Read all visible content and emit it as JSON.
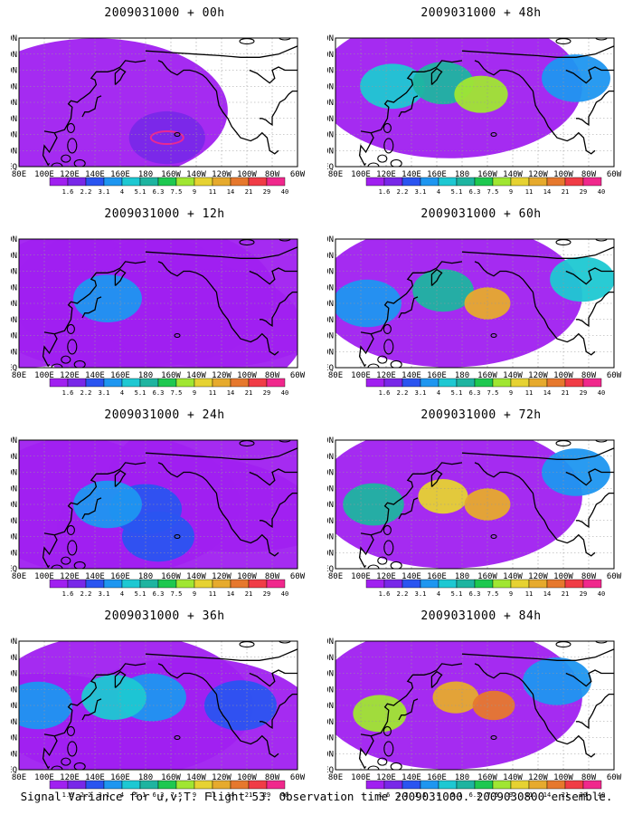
{
  "figure": {
    "footer": "Signal Variance for u,v,T. Flight 53. Observation time 2009031000. 2009030800 ensemble."
  },
  "colorbar": {
    "levels": [
      "1.6",
      "2.2",
      "3.1",
      "4",
      "5.1",
      "6.3",
      "7.5",
      "9",
      "11",
      "14",
      "21",
      "29",
      "40"
    ],
    "colors": [
      "#a020f0",
      "#7828e8",
      "#2a54f0",
      "#1e96f0",
      "#1ec8d2",
      "#1eb4a0",
      "#1ec850",
      "#a0e632",
      "#e6d232",
      "#e6aa2d",
      "#e6782d",
      "#f03c46",
      "#f0288c"
    ]
  },
  "axes": {
    "x_ticks": [
      "80E",
      "100E",
      "120E",
      "140E",
      "160E",
      "180",
      "160W",
      "140W",
      "120W",
      "100W",
      "80W",
      "60W"
    ],
    "y_ticks": [
      "EQ",
      "10N",
      "20N",
      "30N",
      "40N",
      "50N",
      "60N",
      "70N",
      "80N"
    ]
  },
  "chart_data": [
    {
      "type": "heatmap",
      "title": "2009031000 + 00h",
      "lead_hours": 0,
      "features": [
        {
          "lon": 197,
          "lat": 18,
          "level": 12,
          "note": "ring"
        },
        {
          "lon": 197,
          "lat": 18,
          "level": 1
        },
        {
          "lon": 140,
          "lat": 35,
          "level": 0
        }
      ]
    },
    {
      "type": "heatmap",
      "title": "2009031000 + 12h",
      "lead_hours": 12,
      "features": [
        {
          "lon": 150,
          "lat": 43,
          "level": 0
        },
        {
          "lon": 150,
          "lat": 43,
          "level": 3
        },
        {
          "lon": 178,
          "lat": 45,
          "level": 0
        },
        {
          "lon": 200,
          "lat": 22,
          "level": 0
        },
        {
          "lon": 85,
          "lat": 45,
          "level": 0
        },
        {
          "lon": 235,
          "lat": 45,
          "level": 0
        }
      ]
    },
    {
      "type": "heatmap",
      "title": "2009031000 + 24h",
      "lead_hours": 24,
      "features": [
        {
          "lon": 150,
          "lat": 40,
          "level": 0
        },
        {
          "lon": 150,
          "lat": 40,
          "level": 3
        },
        {
          "lon": 180,
          "lat": 37,
          "level": 2
        },
        {
          "lon": 190,
          "lat": 20,
          "level": 2
        },
        {
          "lon": 100,
          "lat": 40,
          "level": 0
        },
        {
          "lon": 215,
          "lat": 25,
          "level": 0
        },
        {
          "lon": 255,
          "lat": 55,
          "level": 0
        }
      ]
    },
    {
      "type": "heatmap",
      "title": "2009031000 + 36h",
      "lead_hours": 36,
      "features": [
        {
          "lon": 160,
          "lat": 40,
          "level": 0
        },
        {
          "lon": 155,
          "lat": 45,
          "level": 4
        },
        {
          "lon": 185,
          "lat": 45,
          "level": 3
        },
        {
          "lon": 95,
          "lat": 40,
          "level": 3
        },
        {
          "lon": 255,
          "lat": 40,
          "level": 2
        },
        {
          "lon": 100,
          "lat": 15,
          "level": 0
        },
        {
          "lon": 215,
          "lat": 25,
          "level": 0
        }
      ]
    },
    {
      "type": "heatmap",
      "title": "2009031000 + 48h",
      "lead_hours": 48,
      "features": [
        {
          "lon": 170,
          "lat": 50,
          "level": 0
        },
        {
          "lon": 165,
          "lat": 52,
          "level": 5
        },
        {
          "lon": 195,
          "lat": 45,
          "level": 7
        },
        {
          "lon": 125,
          "lat": 50,
          "level": 4
        },
        {
          "lon": 270,
          "lat": 55,
          "level": 3
        }
      ]
    },
    {
      "type": "heatmap",
      "title": "2009031000 + 60h",
      "lead_hours": 60,
      "features": [
        {
          "lon": 170,
          "lat": 45,
          "level": 0
        },
        {
          "lon": 165,
          "lat": 48,
          "level": 5
        },
        {
          "lon": 200,
          "lat": 40,
          "level": 9
        },
        {
          "lon": 105,
          "lat": 40,
          "level": 3
        },
        {
          "lon": 275,
          "lat": 55,
          "level": 4
        }
      ]
    },
    {
      "type": "heatmap",
      "title": "2009031000 + 72h",
      "lead_hours": 72,
      "features": [
        {
          "lon": 170,
          "lat": 45,
          "level": 0
        },
        {
          "lon": 165,
          "lat": 45,
          "level": 8
        },
        {
          "lon": 200,
          "lat": 40,
          "level": 9
        },
        {
          "lon": 110,
          "lat": 40,
          "level": 5
        },
        {
          "lon": 270,
          "lat": 60,
          "level": 3
        }
      ]
    },
    {
      "type": "heatmap",
      "title": "2009031000 + 84h",
      "lead_hours": 84,
      "features": [
        {
          "lon": 170,
          "lat": 45,
          "level": 0
        },
        {
          "lon": 175,
          "lat": 45,
          "level": 9
        },
        {
          "lon": 205,
          "lat": 40,
          "level": 10
        },
        {
          "lon": 115,
          "lat": 35,
          "level": 7
        },
        {
          "lon": 255,
          "lat": 55,
          "level": 3
        }
      ]
    }
  ]
}
